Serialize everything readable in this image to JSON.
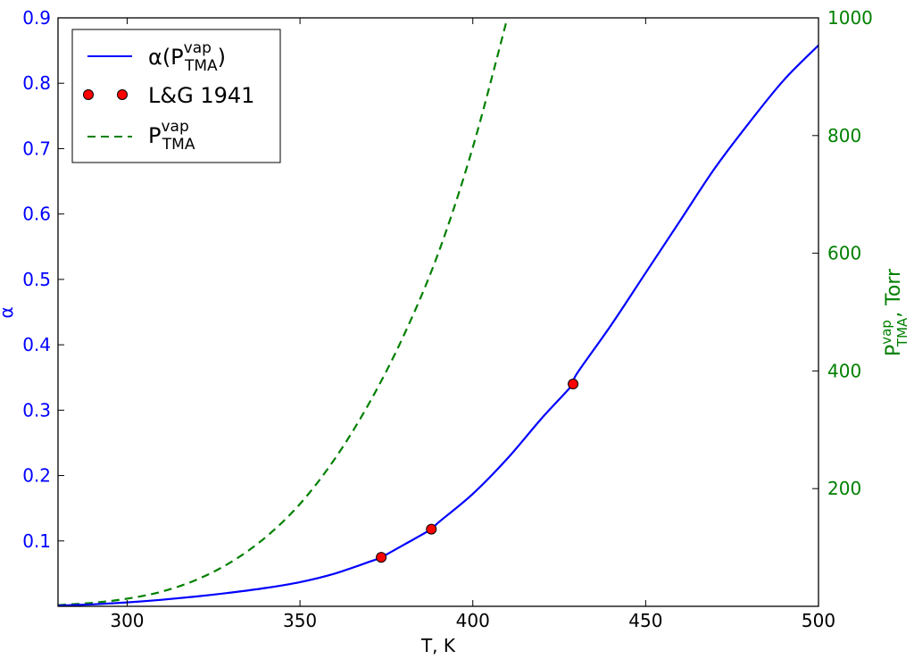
{
  "chart_data": {
    "type": "line",
    "xlabel": "T, K",
    "ylabel_left": "α",
    "ylabel_right": {
      "base": "P",
      "sup": "vap",
      "sub": "TMA",
      "suffix": ", Torr"
    },
    "xlim": [
      280,
      500
    ],
    "ylim_left": [
      0,
      0.9
    ],
    "ylim_right": [
      0,
      1000
    ],
    "x_ticks": [
      300,
      350,
      400,
      450,
      500
    ],
    "y_left_ticks": [
      0.1,
      0.2,
      0.3,
      0.4,
      0.5,
      0.6,
      0.7,
      0.8,
      0.9
    ],
    "y_right_ticks": [
      200,
      400,
      600,
      800,
      1000
    ],
    "grid": false,
    "legend_position": "top-left",
    "colors": {
      "alpha": "#0000ff",
      "points": "#ff0000",
      "pressure": "#008000"
    },
    "series": [
      {
        "name": {
          "base": "α(P",
          "sup": "vap",
          "sub": "TMA",
          "suffix": ")"
        },
        "axis": "left",
        "style": "solid",
        "x": [
          280,
          290,
          300,
          310,
          320,
          330,
          340,
          350,
          360,
          370,
          373.5,
          380,
          388,
          390,
          400,
          410,
          420,
          429,
          430,
          440,
          450,
          460,
          470,
          480,
          490,
          500
        ],
        "y": [
          0.001,
          0.003,
          0.006,
          0.01,
          0.015,
          0.021,
          0.028,
          0.037,
          0.05,
          0.068,
          0.075,
          0.094,
          0.118,
          0.128,
          0.172,
          0.226,
          0.288,
          0.34,
          0.355,
          0.43,
          0.51,
          0.59,
          0.67,
          0.74,
          0.805,
          0.858
        ]
      },
      {
        "name": "L&G 1941",
        "axis": "left",
        "style": "markers",
        "x": [
          373.5,
          388,
          429
        ],
        "y": [
          0.075,
          0.118,
          0.34
        ]
      },
      {
        "name": {
          "base": "P",
          "sup": "vap",
          "sub": "TMA",
          "suffix": ""
        },
        "axis": "right",
        "style": "dashed",
        "x": [
          280,
          290,
          300,
          310,
          320,
          330,
          340,
          350,
          360,
          370,
          380,
          390,
          400,
          410
        ],
        "y": [
          2,
          6,
          13,
          25,
          45,
          75,
          117,
          174,
          250,
          345,
          460,
          600,
          780,
          1000
        ]
      }
    ]
  }
}
